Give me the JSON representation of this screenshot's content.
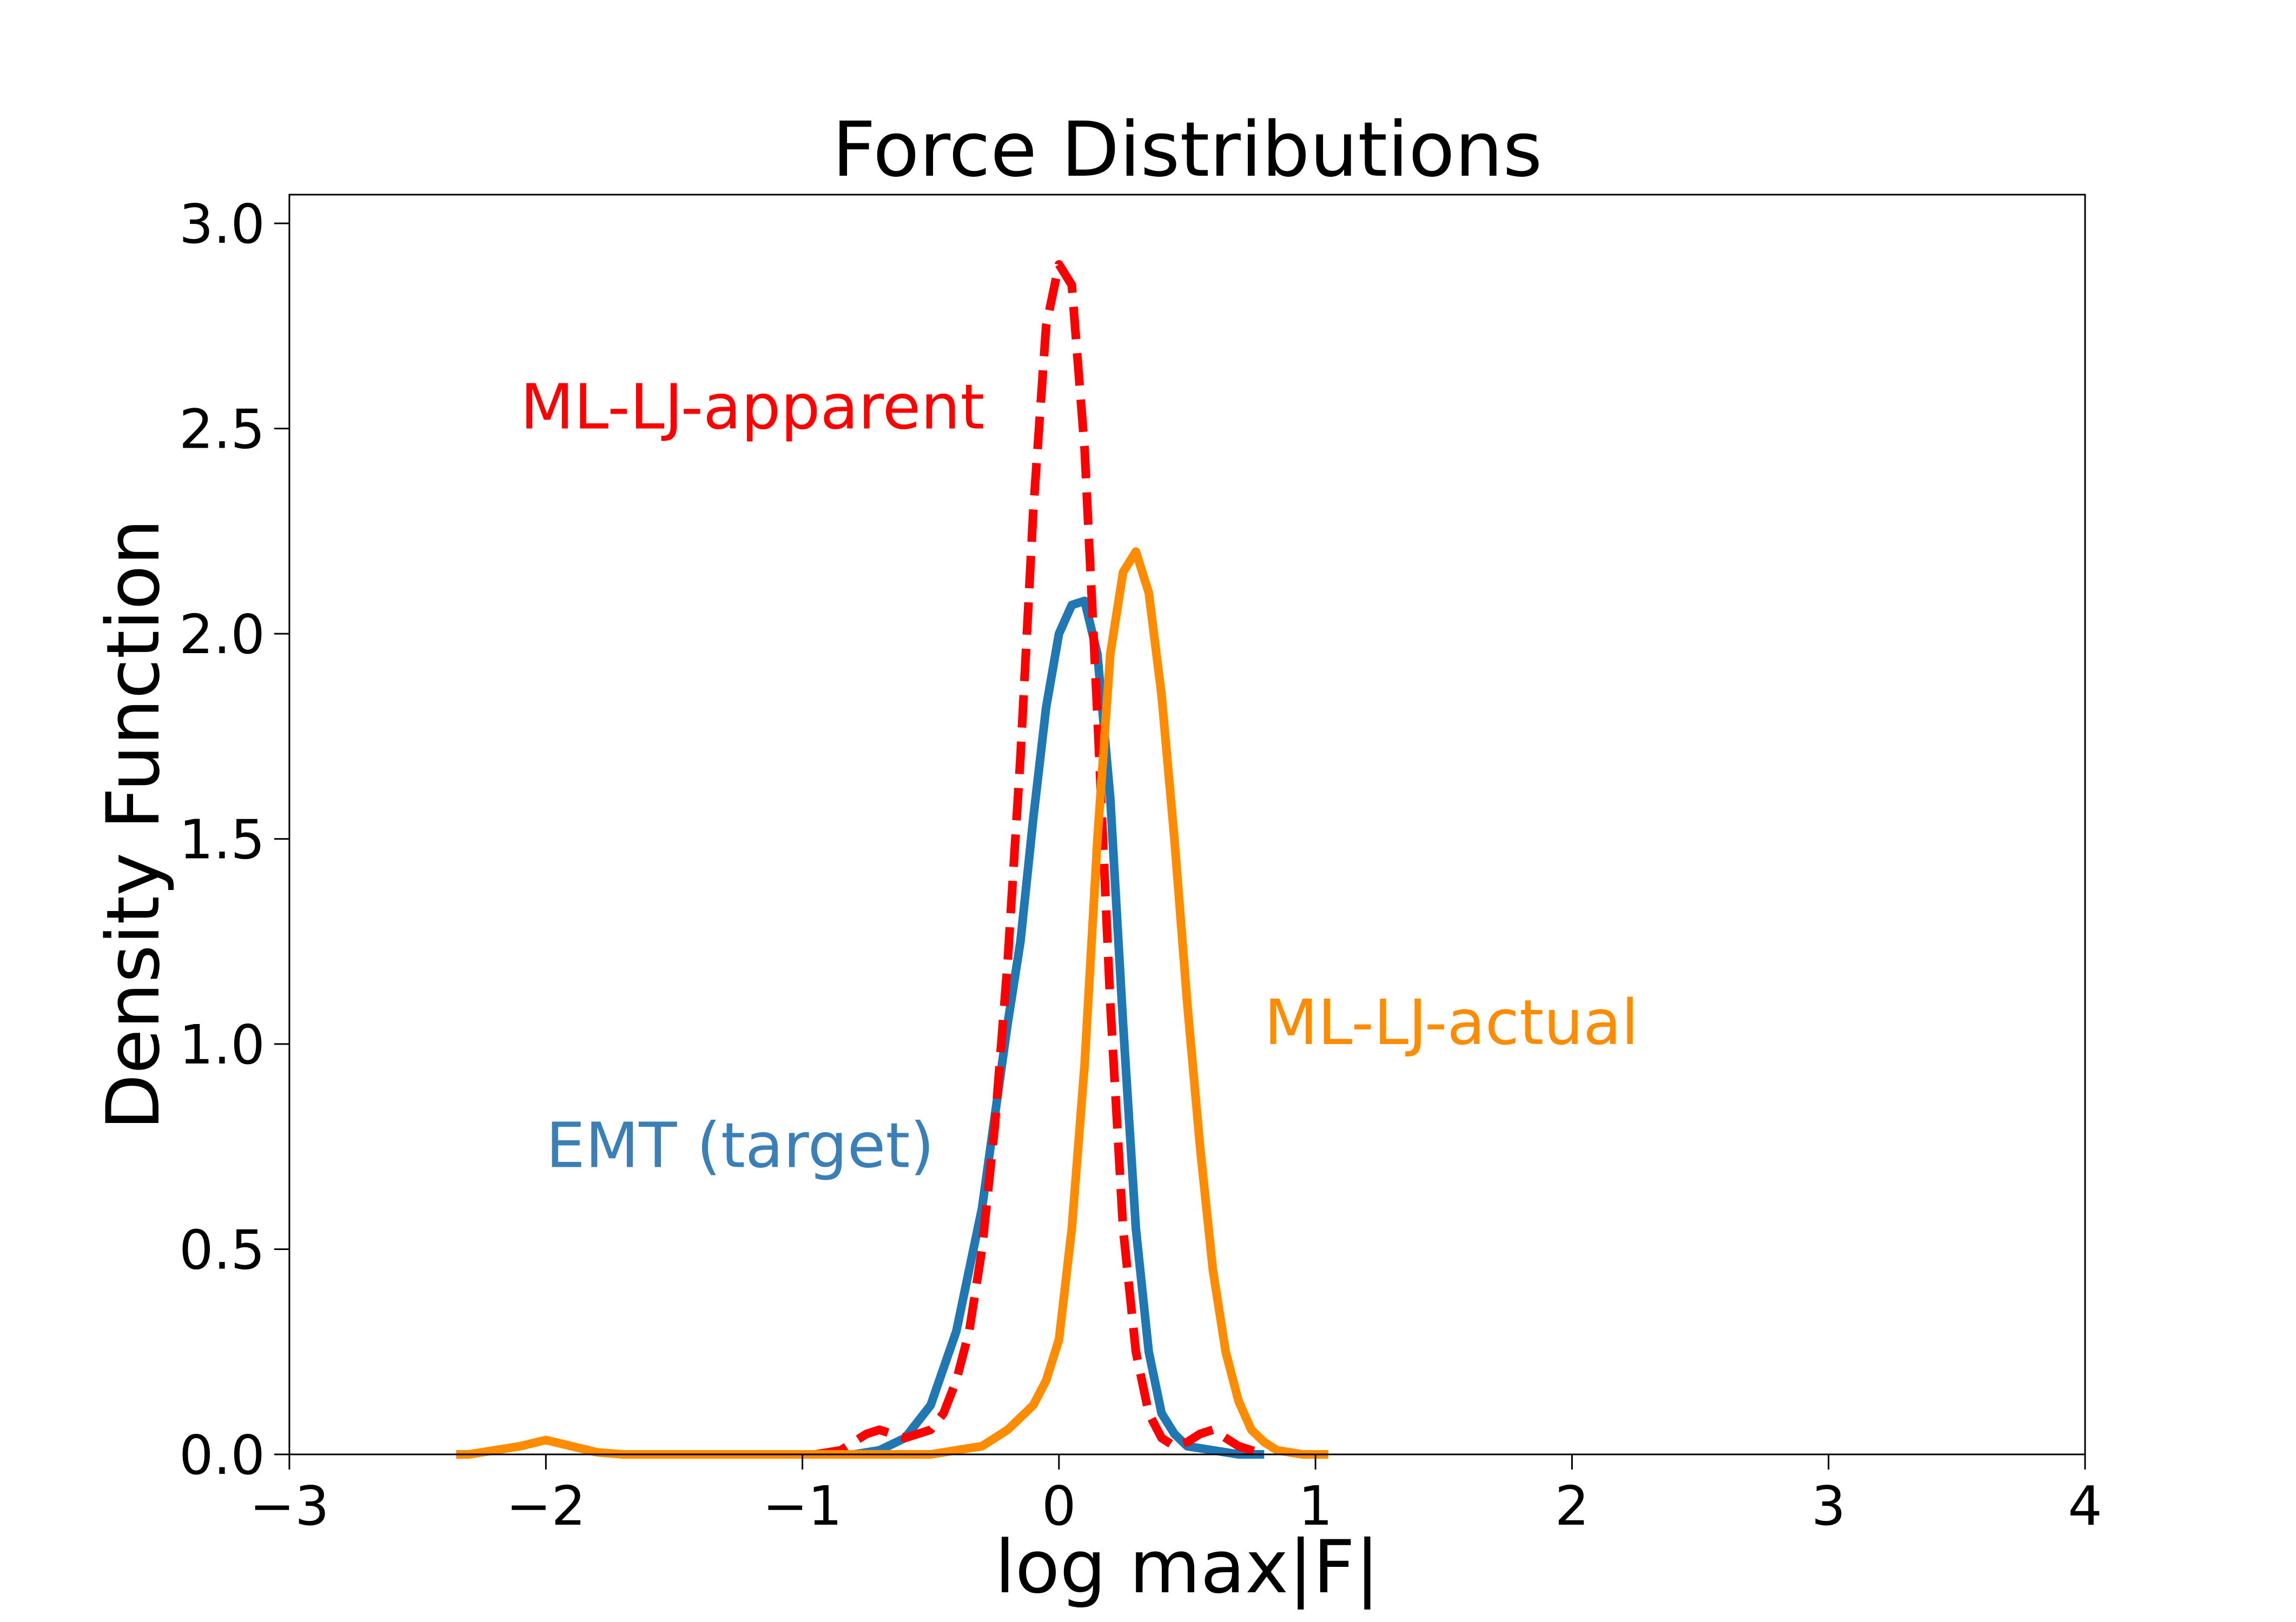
{
  "chart_data": {
    "type": "line",
    "title": "Force Distributions",
    "xlabel": "log max|F|",
    "ylabel": "Density Function",
    "xlim": [
      -3,
      4
    ],
    "ylim": [
      0,
      3.07
    ],
    "grid": false,
    "legend": "none",
    "xticks": [
      -3,
      -2,
      -1,
      0,
      1,
      2,
      3,
      4
    ],
    "xtick_labels": [
      "−3",
      "−2",
      "−1",
      "0",
      "1",
      "2",
      "3",
      "4"
    ],
    "yticks": [
      0,
      0.5,
      1,
      1.5,
      2,
      2.5,
      3
    ],
    "ytick_labels": [
      "0.0",
      "0.5",
      "1.0",
      "1.5",
      "2.0",
      "2.5",
      "3.0"
    ],
    "series": [
      {
        "name": "EMT (target)",
        "color": "#1f77b4",
        "label_color": "#3a7fb8",
        "style": "solid",
        "label_at": [
          -2.0,
          0.7
        ],
        "x": [
          -0.9,
          -0.8,
          -0.7,
          -0.6,
          -0.5,
          -0.4,
          -0.3,
          -0.2,
          -0.15,
          -0.1,
          -0.05,
          0.0,
          0.05,
          0.1,
          0.15,
          0.2,
          0.25,
          0.3,
          0.35,
          0.4,
          0.45,
          0.5,
          0.6,
          0.7,
          0.8
        ],
        "y": [
          0.0,
          0.0,
          0.01,
          0.04,
          0.12,
          0.3,
          0.6,
          1.05,
          1.25,
          1.55,
          1.82,
          2.0,
          2.07,
          2.08,
          1.95,
          1.6,
          1.05,
          0.55,
          0.25,
          0.1,
          0.05,
          0.02,
          0.01,
          0.0,
          0.0
        ]
      },
      {
        "name": "ML-LJ-apparent",
        "color": "#ff0000",
        "label_color": "#ff0000",
        "style": "dashed",
        "label_at": [
          -2.1,
          2.5
        ],
        "x": [
          -0.95,
          -0.85,
          -0.8,
          -0.75,
          -0.7,
          -0.65,
          -0.6,
          -0.55,
          -0.5,
          -0.45,
          -0.4,
          -0.35,
          -0.3,
          -0.25,
          -0.2,
          -0.15,
          -0.1,
          -0.05,
          0.0,
          0.05,
          0.1,
          0.15,
          0.2,
          0.25,
          0.3,
          0.35,
          0.4,
          0.45,
          0.5,
          0.55,
          0.6,
          0.65,
          0.7,
          0.75,
          0.8
        ],
        "y": [
          0.0,
          0.01,
          0.03,
          0.05,
          0.06,
          0.05,
          0.04,
          0.05,
          0.06,
          0.1,
          0.18,
          0.3,
          0.5,
          0.8,
          1.2,
          1.7,
          2.3,
          2.75,
          2.9,
          2.85,
          2.45,
          1.8,
          1.1,
          0.55,
          0.25,
          0.1,
          0.04,
          0.02,
          0.03,
          0.05,
          0.06,
          0.04,
          0.02,
          0.01,
          0.0
        ]
      },
      {
        "name": "ML-LJ-actual",
        "color": "#ff8c00",
        "label_color": "#ff8c00",
        "style": "solid",
        "label_at": [
          0.8,
          1.0
        ],
        "x": [
          -2.35,
          -2.3,
          -2.2,
          -2.1,
          -2.0,
          -1.9,
          -1.8,
          -1.7,
          -1.5,
          -1.0,
          -0.5,
          -0.3,
          -0.2,
          -0.1,
          -0.05,
          0.0,
          0.05,
          0.1,
          0.15,
          0.2,
          0.25,
          0.3,
          0.35,
          0.4,
          0.45,
          0.5,
          0.55,
          0.6,
          0.65,
          0.7,
          0.75,
          0.8,
          0.85,
          0.9,
          0.95,
          1.0,
          1.05
        ],
        "y": [
          0.0,
          0.0,
          0.01,
          0.02,
          0.035,
          0.02,
          0.005,
          0.0,
          0.0,
          0.0,
          0.0,
          0.02,
          0.06,
          0.12,
          0.18,
          0.28,
          0.55,
          0.95,
          1.5,
          1.95,
          2.15,
          2.2,
          2.1,
          1.85,
          1.5,
          1.1,
          0.75,
          0.45,
          0.25,
          0.13,
          0.06,
          0.03,
          0.01,
          0.005,
          0.0,
          0.0,
          0.0
        ]
      }
    ]
  }
}
